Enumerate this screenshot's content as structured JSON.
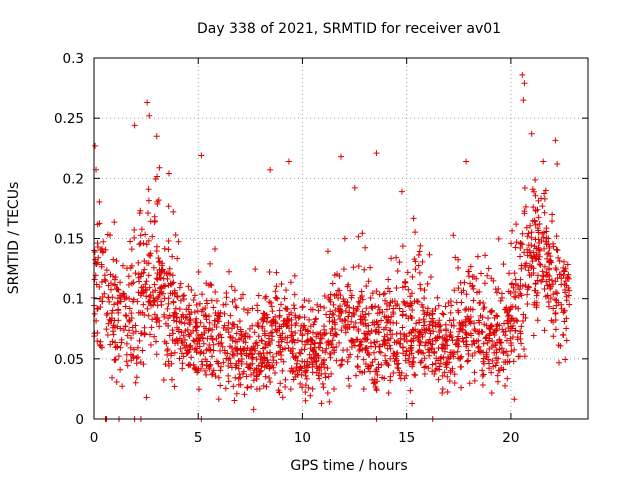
{
  "chart_data": {
    "type": "scatter",
    "title": "Day 338 of 2021, SRMTID for receiver av01",
    "xlabel": "GPS time / hours",
    "ylabel": "SRMTID / TECUs",
    "xlim": [
      0,
      23.7
    ],
    "ylim": [
      0,
      0.3
    ],
    "x_ticks": [
      0,
      5,
      10,
      15,
      20
    ],
    "x_tick_labels": [
      "0",
      "5",
      "10",
      "15",
      "20"
    ],
    "y_ticks": [
      0,
      0.05,
      0.1,
      0.15,
      0.2,
      0.25,
      0.3
    ],
    "y_tick_labels": [
      "0",
      "0.05",
      "0.1",
      "0.15",
      "0.2",
      "0.25",
      "0.3"
    ],
    "grid": true,
    "marker": "plus",
    "color": "#e00000",
    "density_hours": [
      0.0,
      0.5,
      1.0,
      1.5,
      2.0,
      2.5,
      3.0,
      3.5,
      4.0,
      4.5,
      5.0,
      5.5,
      6.0,
      6.5,
      7.0,
      7.5,
      8.0,
      8.5,
      9.0,
      9.5,
      10.0,
      10.5,
      11.0,
      11.5,
      12.0,
      12.5,
      13.0,
      13.5,
      14.0,
      14.5,
      15.0,
      15.5,
      16.0,
      16.5,
      17.0,
      17.5,
      18.0,
      18.5,
      19.0,
      19.5,
      20.0,
      20.5,
      21.0,
      21.5,
      22.0,
      22.5,
      22.8
    ],
    "density_center": [
      0.1,
      0.11,
      0.09,
      0.08,
      0.09,
      0.1,
      0.11,
      0.1,
      0.09,
      0.07,
      0.06,
      0.07,
      0.065,
      0.06,
      0.05,
      0.05,
      0.06,
      0.065,
      0.07,
      0.065,
      0.06,
      0.055,
      0.06,
      0.07,
      0.08,
      0.075,
      0.07,
      0.06,
      0.065,
      0.07,
      0.075,
      0.08,
      0.065,
      0.055,
      0.06,
      0.07,
      0.08,
      0.075,
      0.07,
      0.065,
      0.07,
      0.1,
      0.13,
      0.14,
      0.12,
      0.1,
      0.1
    ],
    "density_spread": [
      0.05,
      0.05,
      0.04,
      0.035,
      0.05,
      0.06,
      0.06,
      0.05,
      0.045,
      0.035,
      0.03,
      0.035,
      0.035,
      0.035,
      0.03,
      0.03,
      0.035,
      0.04,
      0.045,
      0.04,
      0.035,
      0.03,
      0.035,
      0.04,
      0.05,
      0.045,
      0.04,
      0.035,
      0.035,
      0.04,
      0.045,
      0.05,
      0.035,
      0.03,
      0.035,
      0.04,
      0.04,
      0.04,
      0.035,
      0.035,
      0.04,
      0.07,
      0.06,
      0.05,
      0.045,
      0.04,
      0.03
    ],
    "point_count": 2200,
    "peaks": [
      {
        "x": 0.05,
        "y": 0.227
      },
      {
        "x": 1.95,
        "y": 0.244
      },
      {
        "x": 2.55,
        "y": 0.263
      },
      {
        "x": 2.65,
        "y": 0.252
      },
      {
        "x": 5.15,
        "y": 0.219
      },
      {
        "x": 8.45,
        "y": 0.207
      },
      {
        "x": 9.35,
        "y": 0.214
      },
      {
        "x": 11.85,
        "y": 0.218
      },
      {
        "x": 13.55,
        "y": 0.221
      },
      {
        "x": 17.85,
        "y": 0.214
      },
      {
        "x": 20.55,
        "y": 0.286
      },
      {
        "x": 20.65,
        "y": 0.279
      },
      {
        "x": 20.6,
        "y": 0.265
      },
      {
        "x": 21.0,
        "y": 0.237
      },
      {
        "x": 21.55,
        "y": 0.214
      }
    ],
    "zero_points": [
      0.55,
      0.6,
      1.2,
      1.95,
      2.25,
      5.15,
      13.55,
      16.25
    ]
  }
}
